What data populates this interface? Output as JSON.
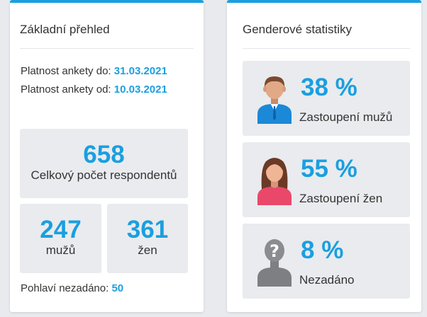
{
  "overview": {
    "title": "Základní přehled",
    "valid_to_label": "Platnost ankety do:",
    "valid_to": "31.03.2021",
    "valid_from_label": "Platnost ankety od:",
    "valid_from": "10.03.2021",
    "total": {
      "value": "658",
      "label": "Celkový počet respondentů"
    },
    "men": {
      "value": "247",
      "label": "mužů"
    },
    "women": {
      "value": "361",
      "label": "žen"
    },
    "unspecified_label": "Pohlaví nezadáno:",
    "unspecified_value": "50"
  },
  "gender": {
    "title": "Genderové statistiky",
    "items": [
      {
        "percent": "38 %",
        "label": "Zastoupení mužů",
        "icon": "male-person-icon"
      },
      {
        "percent": "55 %",
        "label": "Zastoupení žen",
        "icon": "female-person-icon"
      },
      {
        "percent": "8 %",
        "label": "Nezadáno",
        "icon": "unknown-person-icon"
      }
    ]
  },
  "colors": {
    "accent": "#1a9fe0",
    "box": "#e9ebee"
  }
}
